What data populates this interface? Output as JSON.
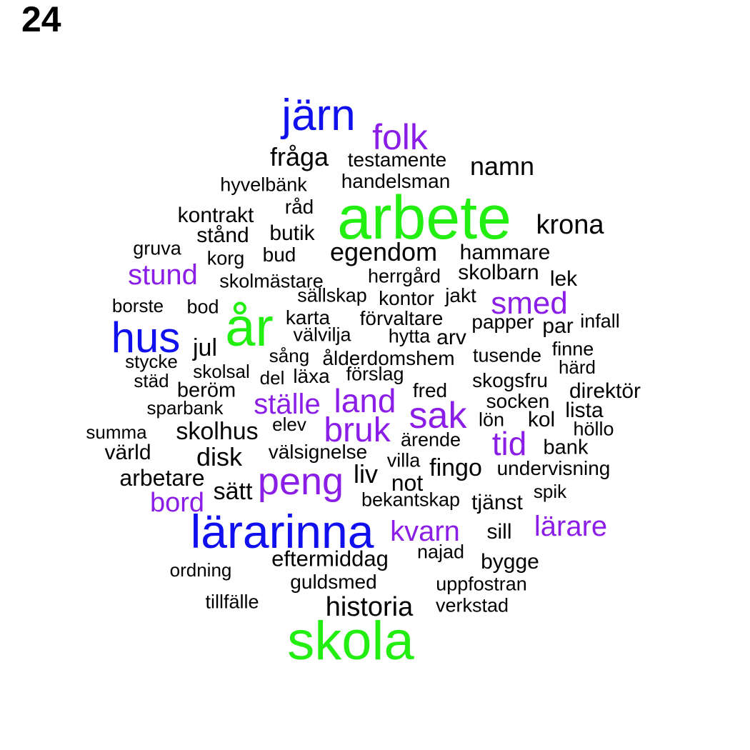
{
  "page_number": "24",
  "palette": {
    "green": "#22ee11",
    "blue": "#1010ee",
    "purple": "#8a1ee6",
    "black": "#000000"
  },
  "words": [
    {
      "text": "järn",
      "color": "blue"
    },
    {
      "text": "folk",
      "color": "purple"
    },
    {
      "text": "fråga",
      "color": "black"
    },
    {
      "text": "testamente",
      "color": "black"
    },
    {
      "text": "namn",
      "color": "black"
    },
    {
      "text": "handelsman",
      "color": "black"
    },
    {
      "text": "hyvelbänk",
      "color": "black"
    },
    {
      "text": "råd",
      "color": "black"
    },
    {
      "text": "arbete",
      "color": "green"
    },
    {
      "text": "kontrakt",
      "color": "black"
    },
    {
      "text": "krona",
      "color": "black"
    },
    {
      "text": "stånd",
      "color": "black"
    },
    {
      "text": "butik",
      "color": "black"
    },
    {
      "text": "gruva",
      "color": "black"
    },
    {
      "text": "egendom",
      "color": "black"
    },
    {
      "text": "hammare",
      "color": "black"
    },
    {
      "text": "korg",
      "color": "black"
    },
    {
      "text": "bud",
      "color": "black"
    },
    {
      "text": "stund",
      "color": "purple"
    },
    {
      "text": "skolbarn",
      "color": "black"
    },
    {
      "text": "herrgård",
      "color": "black"
    },
    {
      "text": "skolmästare",
      "color": "black"
    },
    {
      "text": "lek",
      "color": "black"
    },
    {
      "text": "sällskap",
      "color": "black"
    },
    {
      "text": "kontor",
      "color": "black"
    },
    {
      "text": "jakt",
      "color": "black"
    },
    {
      "text": "smed",
      "color": "purple"
    },
    {
      "text": "borste",
      "color": "black"
    },
    {
      "text": "bod",
      "color": "black"
    },
    {
      "text": "år",
      "color": "green"
    },
    {
      "text": "karta",
      "color": "black"
    },
    {
      "text": "förvaltare",
      "color": "black"
    },
    {
      "text": "papper",
      "color": "black"
    },
    {
      "text": "infall",
      "color": "black"
    },
    {
      "text": "par",
      "color": "black"
    },
    {
      "text": "hus",
      "color": "blue"
    },
    {
      "text": "välvilja",
      "color": "black"
    },
    {
      "text": "hytta",
      "color": "black"
    },
    {
      "text": "arv",
      "color": "black"
    },
    {
      "text": "jul",
      "color": "black"
    },
    {
      "text": "finne",
      "color": "black"
    },
    {
      "text": "sång",
      "color": "black"
    },
    {
      "text": "ålderdomshem",
      "color": "black"
    },
    {
      "text": "tusende",
      "color": "black"
    },
    {
      "text": "stycke",
      "color": "black"
    },
    {
      "text": "härd",
      "color": "black"
    },
    {
      "text": "skolsal",
      "color": "black"
    },
    {
      "text": "förslag",
      "color": "black"
    },
    {
      "text": "del",
      "color": "black"
    },
    {
      "text": "läxa",
      "color": "black"
    },
    {
      "text": "städ",
      "color": "black"
    },
    {
      "text": "skogsfru",
      "color": "black"
    },
    {
      "text": "beröm",
      "color": "black"
    },
    {
      "text": "fred",
      "color": "black"
    },
    {
      "text": "direktör",
      "color": "black"
    },
    {
      "text": "land",
      "color": "purple"
    },
    {
      "text": "ställe",
      "color": "purple"
    },
    {
      "text": "socken",
      "color": "black"
    },
    {
      "text": "sparbank",
      "color": "black"
    },
    {
      "text": "sak",
      "color": "purple"
    },
    {
      "text": "lista",
      "color": "black"
    },
    {
      "text": "kol",
      "color": "black"
    },
    {
      "text": "lön",
      "color": "black"
    },
    {
      "text": "elev",
      "color": "black"
    },
    {
      "text": "summa",
      "color": "black"
    },
    {
      "text": "skolhus",
      "color": "black"
    },
    {
      "text": "bruk",
      "color": "purple"
    },
    {
      "text": "höllo",
      "color": "black"
    },
    {
      "text": "ärende",
      "color": "black"
    },
    {
      "text": "tid",
      "color": "purple"
    },
    {
      "text": "värld",
      "color": "black"
    },
    {
      "text": "välsignelse",
      "color": "black"
    },
    {
      "text": "bank",
      "color": "black"
    },
    {
      "text": "disk",
      "color": "black"
    },
    {
      "text": "villa",
      "color": "black"
    },
    {
      "text": "fingo",
      "color": "black"
    },
    {
      "text": "undervisning",
      "color": "black"
    },
    {
      "text": "liv",
      "color": "black"
    },
    {
      "text": "arbetare",
      "color": "black"
    },
    {
      "text": "peng",
      "color": "purple"
    },
    {
      "text": "not",
      "color": "black"
    },
    {
      "text": "sätt",
      "color": "black"
    },
    {
      "text": "spik",
      "color": "black"
    },
    {
      "text": "bekantskap",
      "color": "black"
    },
    {
      "text": "bord",
      "color": "purple"
    },
    {
      "text": "tjänst",
      "color": "black"
    },
    {
      "text": "lärarinna",
      "color": "blue"
    },
    {
      "text": "lärare",
      "color": "purple"
    },
    {
      "text": "kvarn",
      "color": "purple"
    },
    {
      "text": "sill",
      "color": "black"
    },
    {
      "text": "najad",
      "color": "black"
    },
    {
      "text": "eftermiddag",
      "color": "black"
    },
    {
      "text": "bygge",
      "color": "black"
    },
    {
      "text": "ordning",
      "color": "black"
    },
    {
      "text": "guldsmed",
      "color": "black"
    },
    {
      "text": "uppfostran",
      "color": "black"
    },
    {
      "text": "tillfälle",
      "color": "black"
    },
    {
      "text": "historia",
      "color": "black"
    },
    {
      "text": "verkstad",
      "color": "black"
    },
    {
      "text": "skola",
      "color": "green"
    }
  ]
}
